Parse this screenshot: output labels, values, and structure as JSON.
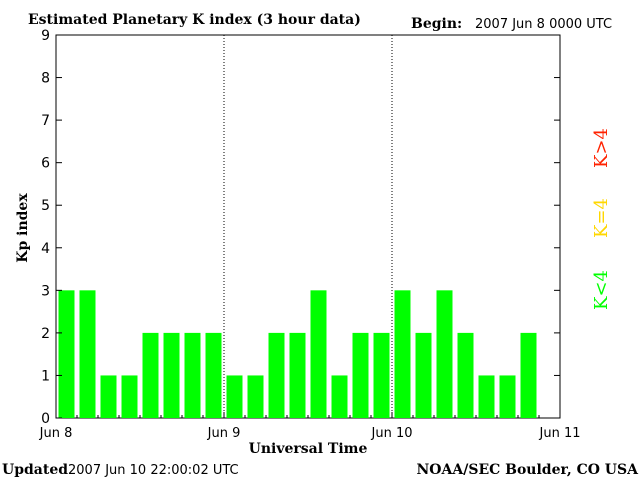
{
  "header": {
    "title": "Estimated Planetary K index (3 hour data)",
    "begin_label": "Begin:",
    "begin_value": "2007 Jun 8 0000 UTC"
  },
  "footer": {
    "updated_label": "Updated",
    "updated_value": "2007 Jun 10 22:00:02 UTC",
    "source": "NOAA/SEC Boulder, CO USA"
  },
  "legend": {
    "high": "K>4",
    "equal": "K=4",
    "low": "K<4"
  },
  "colors": {
    "low": "#00ff00",
    "equal": "#ffd700",
    "high": "#ff2200",
    "axis": "#000000",
    "background": "#ffffff"
  },
  "chart_data": {
    "type": "bar",
    "title": "Estimated Planetary K index (3 hour data)",
    "xlabel": "Universal Time",
    "ylabel": "Kp index",
    "ylim": [
      0,
      9
    ],
    "yticks": [
      0,
      1,
      2,
      3,
      4,
      5,
      6,
      7,
      8,
      9
    ],
    "xlim_days": [
      0,
      3
    ],
    "xtick_labels": [
      "Jun 8",
      "Jun 9",
      "Jun 10",
      "Jun 11"
    ],
    "interval_hours": 3,
    "day_separators": [
      "Jun 9",
      "Jun 10"
    ],
    "values": [
      3,
      3,
      1,
      1,
      2,
      2,
      2,
      2,
      1,
      1,
      2,
      2,
      3,
      1,
      2,
      2,
      3,
      2,
      3,
      2,
      1,
      1,
      2
    ],
    "legend": [
      "K<4",
      "K=4",
      "K>4"
    ],
    "grid": false
  }
}
